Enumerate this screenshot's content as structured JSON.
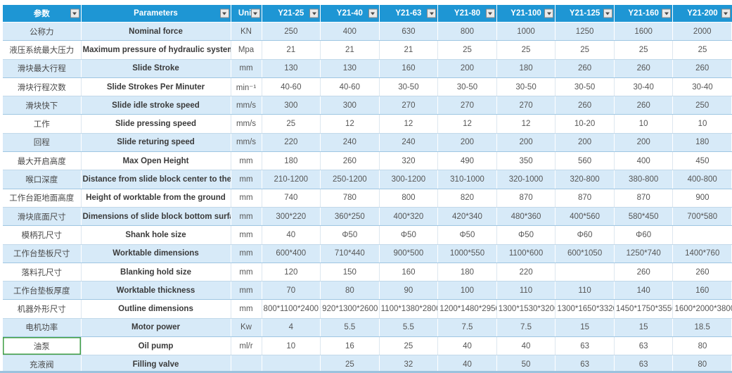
{
  "colors": {
    "header_bg": "#1e96d4",
    "row_alt_bg": "#d7eaf8",
    "row_plain_bg": "#ffffff",
    "selected_cell_border": "#3f9e44",
    "header_text": "#ffffff"
  },
  "icons": {
    "filter_dropdown": "▼"
  },
  "table": {
    "columns": [
      {
        "label": "参数",
        "filter": true
      },
      {
        "label": "Parameters",
        "filter": true
      },
      {
        "label": "Unit",
        "filter": true
      },
      {
        "label": "Y21-25",
        "filter": true
      },
      {
        "label": "Y21-40",
        "filter": true
      },
      {
        "label": "Y21-63",
        "filter": true
      },
      {
        "label": "Y21-80",
        "filter": true
      },
      {
        "label": "Y21-100",
        "filter": true
      },
      {
        "label": "Y21-125",
        "filter": true
      },
      {
        "label": "Y21-160",
        "filter": true
      },
      {
        "label": "Y21-200",
        "filter": true
      }
    ],
    "selected_cell": {
      "row": 17,
      "col": 0
    },
    "rows": [
      {
        "cn": "公称力",
        "en": "Nominal force",
        "unit": "KN",
        "values": [
          "250",
          "400",
          "630",
          "800",
          "1000",
          "1250",
          "1600",
          "2000"
        ]
      },
      {
        "cn": "液压系统最大压力",
        "en": "Maximum pressure of hydraulic system",
        "unit": "Mpa",
        "values": [
          "21",
          "21",
          "21",
          "25",
          "25",
          "25",
          "25",
          "25"
        ]
      },
      {
        "cn": "滑块最大行程",
        "en": "Slide Stroke",
        "unit": "mm",
        "values": [
          "130",
          "130",
          "160",
          "200",
          "180",
          "260",
          "260",
          "260"
        ]
      },
      {
        "cn": "滑块行程次数",
        "en": "Slide Strokes Per Minuter",
        "unit": "min⁻¹",
        "values": [
          "40-60",
          "40-60",
          "30-50",
          "30-50",
          "30-50",
          "30-50",
          "30-40",
          "30-40"
        ]
      },
      {
        "cn": "滑块快下",
        "en": "Slide idle stroke speed",
        "unit": "mm/s",
        "values": [
          "300",
          "300",
          "270",
          "270",
          "270",
          "260",
          "260",
          "250"
        ]
      },
      {
        "cn": "工作",
        "en": "Slide pressing speed",
        "unit": "mm/s",
        "values": [
          "25",
          "12",
          "12",
          "12",
          "12",
          "10-20",
          "10",
          "10"
        ]
      },
      {
        "cn": "回程",
        "en": "Slide returing speed",
        "unit": "mm/s",
        "values": [
          "220",
          "240",
          "240",
          "200",
          "200",
          "200",
          "200",
          "180"
        ]
      },
      {
        "cn": "最大开启高度",
        "en": "Max Open Height",
        "unit": "mm",
        "values": [
          "180",
          "260",
          "320",
          "490",
          "350",
          "560",
          "400",
          "450"
        ]
      },
      {
        "cn": "喉口深度",
        "en": "Distance from slide block center to the frame",
        "unit": "mm",
        "values": [
          "210-1200",
          "250-1200",
          "300-1200",
          "310-1000",
          "320-1000",
          "320-800",
          "380-800",
          "400-800"
        ]
      },
      {
        "cn": "工作台距地面高度",
        "en": "Height of worktable from the ground",
        "unit": "mm",
        "values": [
          "740",
          "780",
          "800",
          "820",
          "870",
          "870",
          "870",
          "900"
        ]
      },
      {
        "cn": "滑块底面尺寸",
        "en": "Dimensions of slide block bottom surface",
        "unit": "mm",
        "values": [
          "300*220",
          "360*250",
          "400*320",
          "420*340",
          "480*360",
          "400*560",
          "580*450",
          "700*580"
        ]
      },
      {
        "cn": "模柄孔尺寸",
        "en": "Shank hole size",
        "unit": "mm",
        "values": [
          "40",
          "Φ50",
          "Φ50",
          "Φ50",
          "Φ50",
          "Φ60",
          "Φ60",
          ""
        ]
      },
      {
        "cn": "工作台垫板尺寸",
        "en": "Worktable dimensions",
        "unit": "mm",
        "values": [
          "600*400",
          "710*440",
          "900*500",
          "1000*550",
          "1100*600",
          "600*1050",
          "1250*740",
          "1400*760"
        ]
      },
      {
        "cn": "落料孔尺寸",
        "en": "Blanking hold size",
        "unit": "mm",
        "values": [
          "120",
          "150",
          "160",
          "180",
          "220",
          "",
          "260",
          "260"
        ]
      },
      {
        "cn": "工作台垫板厚度",
        "en": "Worktable thickness",
        "unit": "mm",
        "values": [
          "70",
          "80",
          "90",
          "100",
          "110",
          "110",
          "140",
          "160"
        ]
      },
      {
        "cn": "机器外形尺寸",
        "en": "Outline dimensions",
        "unit": "mm",
        "values": [
          "800*1100*2400",
          "920*1300*2600",
          "1100*1380*2800",
          "1200*1480*2950",
          "1300*1530*3200",
          "1300*1650*3320",
          "1450*1750*3550",
          "1600*2000*3800"
        ]
      },
      {
        "cn": "电机功率",
        "en": "Motor power",
        "unit": "Kw",
        "values": [
          "4",
          "5.5",
          "5.5",
          "7.5",
          "7.5",
          "15",
          "15",
          "18.5"
        ]
      },
      {
        "cn": "油泵",
        "en": "Oil pump",
        "unit": "ml/r",
        "values": [
          "10",
          "16",
          "25",
          "40",
          "40",
          "63",
          "63",
          "80"
        ]
      },
      {
        "cn": "充液阀",
        "en": "Filling valve",
        "unit": "",
        "values": [
          "",
          "25",
          "32",
          "40",
          "50",
          "63",
          "63",
          "80"
        ]
      }
    ]
  }
}
